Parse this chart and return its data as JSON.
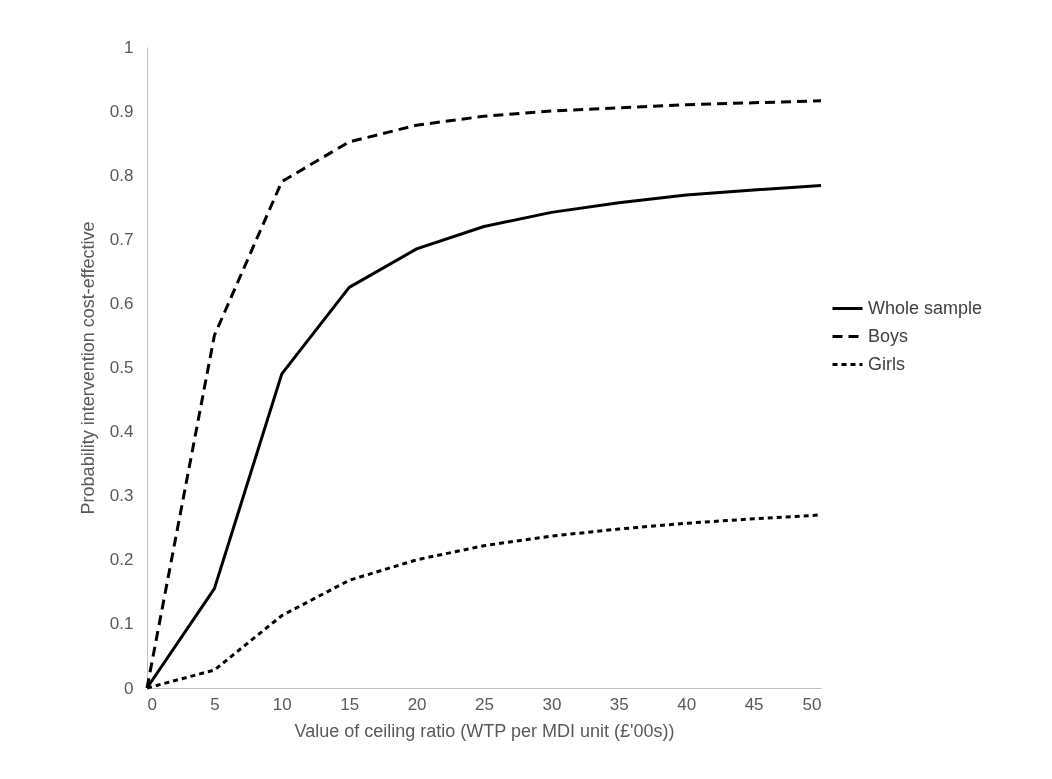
{
  "chart_data": {
    "type": "line",
    "xlabel": "Value of ceiling ratio (WTP per MDI unit (£'00s))",
    "ylabel": "Probability intervention cost-effective",
    "x": [
      0,
      5,
      10,
      15,
      20,
      25,
      30,
      35,
      40,
      45,
      50
    ],
    "series": [
      {
        "name": "Whole sample",
        "color": "#000000",
        "line_style": "solid",
        "values": [
          0,
          0.155,
          0.49,
          0.625,
          0.685,
          0.72,
          0.742,
          0.757,
          0.769,
          0.777,
          0.784
        ]
      },
      {
        "name": "Boys",
        "color": "#000000",
        "line_style": "dashed",
        "values": [
          0,
          0.55,
          0.79,
          0.852,
          0.878,
          0.892,
          0.9,
          0.905,
          0.91,
          0.913,
          0.916
        ]
      },
      {
        "name": "Girls",
        "color": "#000000",
        "line_style": "dotted",
        "values": [
          0,
          0.028,
          0.113,
          0.168,
          0.2,
          0.222,
          0.237,
          0.248,
          0.257,
          0.264,
          0.27
        ]
      }
    ],
    "xlim": [
      0,
      50
    ],
    "xticks": [
      0,
      5,
      10,
      15,
      20,
      25,
      30,
      35,
      40,
      45,
      50
    ],
    "ylim": [
      0,
      1
    ],
    "yticks": [
      0,
      0.1,
      0.2,
      0.3,
      0.4,
      0.5,
      0.6,
      0.7,
      0.8,
      0.9,
      1
    ],
    "grid": false,
    "legend": "right",
    "marker": "none"
  }
}
